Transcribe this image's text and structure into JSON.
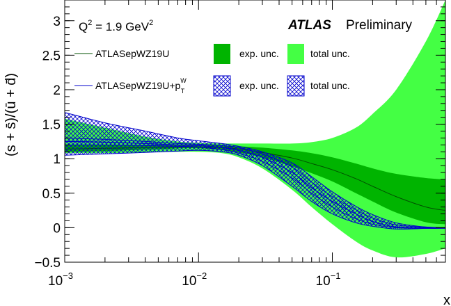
{
  "chart_data": {
    "type": "area",
    "title": "",
    "xlabel": "x",
    "ylabel": "(s + s̄)/(ū + d̄)",
    "xscale": "log",
    "xlim": [
      0.001,
      0.7
    ],
    "ylim": [
      -0.5,
      3.3
    ],
    "x_ticks": [
      {
        "value": 0.001,
        "base": "10",
        "exp": "−3"
      },
      {
        "value": 0.01,
        "base": "10",
        "exp": "−2"
      },
      {
        "value": 0.1,
        "base": "10",
        "exp": "−1"
      }
    ],
    "y_ticks": [
      {
        "value": -0.5,
        "label": "−0.5"
      },
      {
        "value": 0,
        "label": "0"
      },
      {
        "value": 0.5,
        "label": "0.5"
      },
      {
        "value": 1,
        "label": "1"
      },
      {
        "value": 1.5,
        "label": "1.5"
      },
      {
        "value": 2,
        "label": "2"
      },
      {
        "value": 2.5,
        "label": "2.5"
      },
      {
        "value": 3,
        "label": "3"
      }
    ],
    "annotations": {
      "q2_prefix": "Q",
      "q2_sup": "2",
      "q2_mid": " = 1.9 GeV",
      "q2_unit_sup": "2",
      "atlas": "ATLAS",
      "preliminary": "Preliminary"
    },
    "legend": {
      "s1_name": "ATLASepWZ19U",
      "s2_name_base": "ATLASepWZ19U+p",
      "s2_name_sup": "W",
      "s2_name_sub": "T",
      "exp_unc": "exp. unc.",
      "total_unc": "total unc."
    },
    "colors": {
      "s1_exp": "#00b400",
      "s1_total": "#33ff33",
      "s1_line": "#005000",
      "s2": "#0000cc"
    },
    "x": [
      0.001,
      0.002,
      0.004,
      0.007,
      0.01,
      0.015,
      0.02,
      0.03,
      0.05,
      0.07,
      0.1,
      0.15,
      0.2,
      0.3,
      0.5,
      0.7
    ],
    "series": [
      {
        "name": "ATLASepWZ19U",
        "style": "filled",
        "central": [
          1.14,
          1.15,
          1.16,
          1.17,
          1.17,
          1.16,
          1.14,
          1.09,
          1.01,
          0.93,
          0.84,
          0.71,
          0.6,
          0.45,
          0.3,
          0.25
        ],
        "exp_lo": [
          1.1,
          1.11,
          1.13,
          1.15,
          1.15,
          1.13,
          1.09,
          1.02,
          0.89,
          0.79,
          0.67,
          0.5,
          0.38,
          0.22,
          0.08,
          0.05
        ],
        "exp_hi": [
          1.2,
          1.2,
          1.2,
          1.2,
          1.2,
          1.19,
          1.18,
          1.16,
          1.12,
          1.08,
          1.02,
          0.93,
          0.86,
          0.78,
          0.72,
          0.7
        ],
        "total_lo": [
          1.08,
          1.08,
          1.09,
          1.1,
          1.1,
          1.08,
          1.02,
          0.86,
          0.55,
          0.3,
          0.05,
          -0.2,
          -0.33,
          -0.43,
          -0.38,
          -0.3
        ],
        "total_hi": [
          1.58,
          1.45,
          1.32,
          1.25,
          1.23,
          1.22,
          1.22,
          1.22,
          1.22,
          1.24,
          1.3,
          1.45,
          1.65,
          2.0,
          2.7,
          3.3
        ]
      },
      {
        "name": "ATLASepWZ19U+pTW",
        "style": "hatched",
        "central": [
          1.25,
          1.24,
          1.22,
          1.2,
          1.19,
          1.16,
          1.12,
          1.02,
          0.8,
          0.58,
          0.38,
          0.2,
          0.09,
          0.01,
          0.0,
          0.0
        ],
        "exp_lo": [
          1.2,
          1.2,
          1.19,
          1.18,
          1.17,
          1.13,
          1.08,
          0.96,
          0.72,
          0.5,
          0.3,
          0.13,
          0.05,
          0.0,
          -0.01,
          -0.01
        ],
        "exp_hi": [
          1.3,
          1.28,
          1.25,
          1.22,
          1.21,
          1.19,
          1.16,
          1.07,
          0.88,
          0.66,
          0.45,
          0.26,
          0.14,
          0.04,
          0.01,
          0.0
        ],
        "total_lo": [
          1.05,
          1.07,
          1.09,
          1.11,
          1.12,
          1.1,
          1.05,
          0.9,
          0.6,
          0.38,
          0.2,
          0.07,
          0.02,
          -0.02,
          -0.01,
          0.0
        ],
        "total_hi": [
          1.67,
          1.52,
          1.4,
          1.3,
          1.26,
          1.22,
          1.18,
          1.1,
          0.94,
          0.74,
          0.52,
          0.31,
          0.19,
          0.07,
          0.01,
          0.0
        ]
      }
    ]
  }
}
